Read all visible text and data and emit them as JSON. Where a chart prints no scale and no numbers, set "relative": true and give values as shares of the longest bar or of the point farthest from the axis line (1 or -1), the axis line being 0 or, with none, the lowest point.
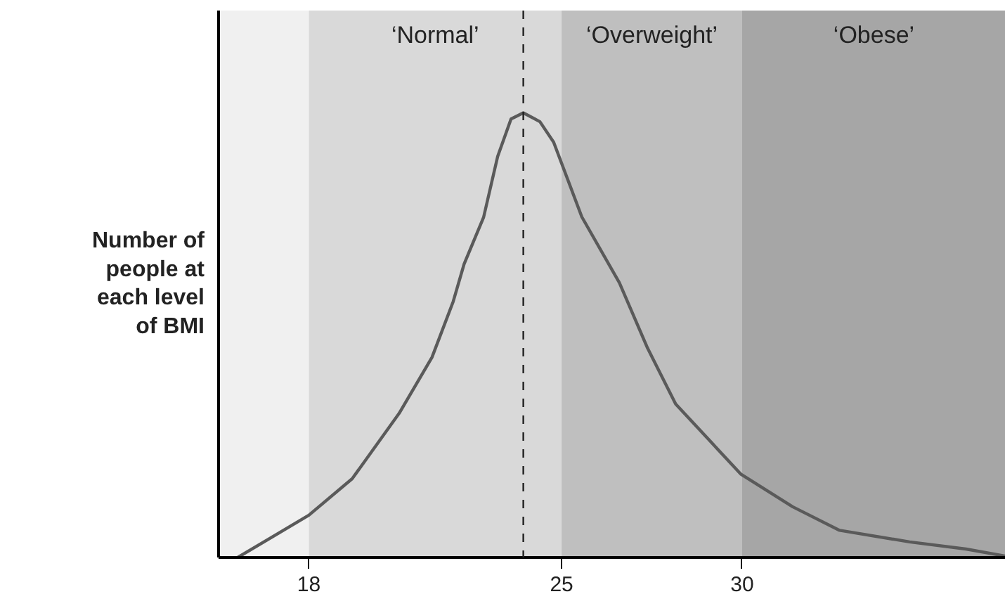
{
  "chart_data": {
    "type": "line",
    "relative": true,
    "ylabel": "Number of people at each level of BMI",
    "x": [
      16.03,
      18.0,
      19.2,
      20.5,
      21.41,
      22.0,
      22.3,
      22.84,
      23.23,
      23.6,
      23.94,
      24.4,
      24.78,
      25.56,
      26.6,
      27.38,
      28.16,
      29.97,
      31.4,
      32.7,
      34.64,
      36.2,
      37.3
    ],
    "series": [
      {
        "color": "#5a5a5a",
        "values": [
          0,
          0.095,
          0.177,
          0.324,
          0.45,
          0.576,
          0.66,
          0.765,
          0.902,
          0.986,
          1.0,
          0.98,
          0.934,
          0.766,
          0.618,
          0.471,
          0.345,
          0.187,
          0.114,
          0.061,
          0.035,
          0.019,
          0.003
        ]
      }
    ],
    "xlim": [
      15.5,
      37.3
    ],
    "xticks": [
      18,
      25,
      30
    ],
    "bands": [
      {
        "axis": "x",
        "from": 15.5,
        "to": 18,
        "color": "#f0f0f0"
      },
      {
        "axis": "x",
        "from": 18,
        "to": 25,
        "label": "‘Normal’",
        "color": "#d9d9d9"
      },
      {
        "axis": "x",
        "from": 25,
        "to": 30,
        "label": "‘Overweight’",
        "color": "#bfbfbf"
      },
      {
        "axis": "x",
        "from": 30,
        "to": 37.3,
        "label": "‘Obese’",
        "color": "#a6a6a6"
      }
    ],
    "ref_lines": [
      {
        "axis": "x",
        "value": 23.94,
        "color": "#222222",
        "line_style": "dashed"
      }
    ],
    "marker": "none",
    "line_style": "solid"
  }
}
